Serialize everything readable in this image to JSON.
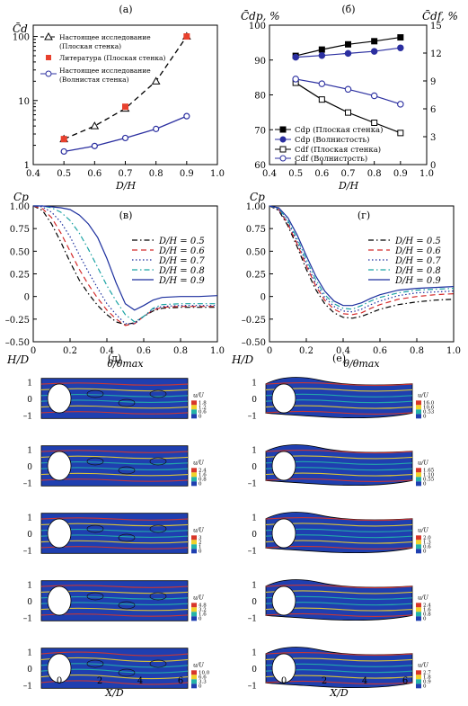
{
  "chart_data": [
    {
      "panel": "(а)",
      "type": "line",
      "ylabel": "C̄d",
      "xlabel": "D/H",
      "xlim": [
        0.4,
        1.0
      ],
      "xticks": [
        "0.4",
        "0.5",
        "0.6",
        "0.7",
        "0.8",
        "0.9",
        "1.0"
      ],
      "ylim": [
        1,
        150
      ],
      "yscale": "log",
      "yticks": [
        "1",
        "10",
        "100"
      ],
      "series": [
        {
          "name": "Настоящее исследование (Плоская стенка)",
          "x": [
            0.5,
            0.6,
            0.7,
            0.8,
            0.9
          ],
          "y": [
            2.5,
            4.0,
            7.5,
            20,
            100
          ],
          "color": "#000000",
          "marker": "triangle",
          "dash": "dashed"
        },
        {
          "name": "Литература (Плоская стенка)",
          "x": [
            0.5,
            0.7,
            0.9
          ],
          "y": [
            2.5,
            8,
            100
          ],
          "color": "#e8412e",
          "marker": "square"
        },
        {
          "name": "Настоящее исследование (Волнистая стенка)",
          "x": [
            0.5,
            0.6,
            0.7,
            0.8,
            0.9
          ],
          "y": [
            1.6,
            1.95,
            2.6,
            3.6,
            5.7
          ],
          "color": "#2b2fa0",
          "marker": "circle",
          "dash": "solid"
        }
      ],
      "legend": "top-left"
    },
    {
      "panel": "(б)",
      "type": "line",
      "ylabel_left": "C̄dp, %",
      "ylabel_right": "C̄df, %",
      "xlabel": "D/H",
      "xlim": [
        0.4,
        1.0
      ],
      "xticks": [
        "0.4",
        "0.5",
        "0.6",
        "0.7",
        "0.8",
        "0.9",
        "1.0"
      ],
      "ylim_left": [
        60,
        100
      ],
      "yticks_left": [
        "60",
        "70",
        "80",
        "90",
        "100"
      ],
      "ylim_right": [
        0,
        15
      ],
      "yticks_right": [
        "0",
        "3",
        "6",
        "9",
        "12",
        "15"
      ],
      "series": [
        {
          "name": "Cdp (Плоская стенка)",
          "axis": "left",
          "x": [
            0.5,
            0.6,
            0.7,
            0.8,
            0.9
          ],
          "y": [
            91.2,
            93.0,
            94.5,
            95.4,
            96.5
          ],
          "marker": "square-filled"
        },
        {
          "name": "Cdp (Волнистость)",
          "axis": "left",
          "x": [
            0.5,
            0.6,
            0.7,
            0.8,
            0.9
          ],
          "y": [
            90.8,
            91.3,
            91.9,
            92.5,
            93.5
          ],
          "marker": "circle-filled"
        },
        {
          "name": "Cdf (Плоская стенка)",
          "axis": "right",
          "x": [
            0.5,
            0.6,
            0.7,
            0.8,
            0.9
          ],
          "y": [
            8.8,
            7.0,
            5.6,
            4.5,
            3.4
          ],
          "marker": "square-open"
        },
        {
          "name": "Cdf (Волнистость)",
          "axis": "right",
          "x": [
            0.5,
            0.6,
            0.7,
            0.8,
            0.9
          ],
          "y": [
            9.2,
            8.7,
            8.1,
            7.4,
            6.5
          ],
          "marker": "circle-open"
        }
      ],
      "legend": "bottom-left"
    },
    {
      "panel": "(в)",
      "type": "line",
      "ylabel": "Cp",
      "xlabel": "θ/θmax",
      "xlim": [
        0,
        1
      ],
      "xticks": [
        "0",
        "0.2",
        "0.4",
        "0.6",
        "0.8",
        "1.0"
      ],
      "ylim": [
        -0.5,
        1.0
      ],
      "yticks": [
        "–0.50",
        "–0.25",
        "0",
        "0.25",
        "0.50",
        "0.75",
        "1.00"
      ],
      "series": [
        {
          "name": "D/H = 0.5",
          "color": "#000000",
          "dash": "dashdot",
          "x": [
            0,
            0.05,
            0.1,
            0.15,
            0.2,
            0.25,
            0.3,
            0.35,
            0.4,
            0.45,
            0.5,
            0.55,
            0.6,
            0.65,
            0.7,
            0.8,
            0.9,
            1.0
          ],
          "y": [
            1.0,
            0.95,
            0.8,
            0.6,
            0.38,
            0.18,
            0.03,
            -0.1,
            -0.2,
            -0.28,
            -0.31,
            -0.29,
            -0.22,
            -0.16,
            -0.13,
            -0.12,
            -0.12,
            -0.12
          ]
        },
        {
          "name": "D/H = 0.6",
          "color": "#d42a2a",
          "dash": "dashed",
          "x": [
            0,
            0.05,
            0.1,
            0.15,
            0.2,
            0.25,
            0.3,
            0.35,
            0.4,
            0.45,
            0.5,
            0.55,
            0.6,
            0.65,
            0.7,
            0.8,
            0.9,
            1.0
          ],
          "y": [
            1.0,
            0.97,
            0.87,
            0.7,
            0.5,
            0.3,
            0.13,
            -0.02,
            -0.15,
            -0.25,
            -0.32,
            -0.3,
            -0.22,
            -0.15,
            -0.12,
            -0.11,
            -0.11,
            -0.11
          ]
        },
        {
          "name": "D/H = 0.7",
          "color": "#1c2f9e",
          "dash": "dotted",
          "x": [
            0,
            0.05,
            0.1,
            0.15,
            0.2,
            0.25,
            0.3,
            0.35,
            0.4,
            0.45,
            0.5,
            0.55,
            0.6,
            0.65,
            0.7,
            0.8,
            0.9,
            1.0
          ],
          "y": [
            1.0,
            0.99,
            0.93,
            0.82,
            0.66,
            0.46,
            0.27,
            0.09,
            -0.08,
            -0.2,
            -0.3,
            -0.3,
            -0.22,
            -0.14,
            -0.11,
            -0.1,
            -0.1,
            -0.1
          ]
        },
        {
          "name": "D/H = 0.8",
          "color": "#1aa3a3",
          "dash": "dashdot",
          "x": [
            0,
            0.05,
            0.1,
            0.15,
            0.2,
            0.25,
            0.3,
            0.35,
            0.4,
            0.45,
            0.5,
            0.55,
            0.6,
            0.65,
            0.7,
            0.8,
            0.9,
            1.0
          ],
          "y": [
            1.0,
            1.0,
            0.98,
            0.93,
            0.84,
            0.7,
            0.52,
            0.32,
            0.12,
            -0.05,
            -0.2,
            -0.28,
            -0.22,
            -0.13,
            -0.09,
            -0.08,
            -0.08,
            -0.08
          ]
        },
        {
          "name": "D/H = 0.9",
          "color": "#1c2f9e",
          "dash": "solid",
          "x": [
            0,
            0.05,
            0.1,
            0.15,
            0.2,
            0.25,
            0.3,
            0.35,
            0.4,
            0.45,
            0.5,
            0.55,
            0.6,
            0.65,
            0.7,
            0.8,
            0.9,
            1.0
          ],
          "y": [
            1.0,
            1.0,
            0.99,
            0.98,
            0.96,
            0.9,
            0.8,
            0.65,
            0.42,
            0.15,
            -0.08,
            -0.15,
            -0.1,
            -0.04,
            -0.01,
            0.0,
            0.0,
            0.01
          ]
        }
      ],
      "legend": "right"
    },
    {
      "panel": "(г)",
      "type": "line",
      "ylabel": "Cp",
      "xlabel": "θ/θmax",
      "xlim": [
        0,
        1
      ],
      "xticks": [
        "0",
        "0.2",
        "0.4",
        "0.6",
        "0.8",
        "1.0"
      ],
      "ylim": [
        -0.5,
        1.0
      ],
      "yticks": [
        "–0.50",
        "–0.25",
        "0",
        "0.25",
        "0.50",
        "0.75",
        "1.00"
      ],
      "series": [
        {
          "name": "D/H = 0.5",
          "color": "#000000",
          "dash": "dashdot",
          "x": [
            0,
            0.05,
            0.1,
            0.15,
            0.2,
            0.25,
            0.3,
            0.35,
            0.4,
            0.45,
            0.5,
            0.55,
            0.6,
            0.7,
            0.8,
            0.9,
            1.0
          ],
          "y": [
            1.0,
            0.95,
            0.78,
            0.55,
            0.3,
            0.08,
            -0.08,
            -0.18,
            -0.23,
            -0.24,
            -0.22,
            -0.18,
            -0.14,
            -0.09,
            -0.06,
            -0.04,
            -0.03
          ]
        },
        {
          "name": "D/H = 0.6",
          "color": "#d42a2a",
          "dash": "dashed",
          "x": [
            0,
            0.05,
            0.1,
            0.15,
            0.2,
            0.25,
            0.3,
            0.35,
            0.4,
            0.45,
            0.5,
            0.55,
            0.6,
            0.7,
            0.8,
            0.9,
            1.0
          ],
          "y": [
            1.0,
            0.96,
            0.8,
            0.58,
            0.34,
            0.12,
            -0.04,
            -0.14,
            -0.19,
            -0.2,
            -0.18,
            -0.13,
            -0.09,
            -0.03,
            0.0,
            0.02,
            0.03
          ]
        },
        {
          "name": "D/H = 0.7",
          "color": "#1c2f9e",
          "dash": "dotted",
          "x": [
            0,
            0.05,
            0.1,
            0.15,
            0.2,
            0.25,
            0.3,
            0.35,
            0.4,
            0.45,
            0.5,
            0.55,
            0.6,
            0.7,
            0.8,
            0.9,
            1.0
          ],
          "y": [
            1.0,
            0.96,
            0.82,
            0.61,
            0.37,
            0.15,
            -0.01,
            -0.11,
            -0.16,
            -0.17,
            -0.14,
            -0.09,
            -0.05,
            0.01,
            0.04,
            0.05,
            0.06
          ]
        },
        {
          "name": "D/H = 0.8",
          "color": "#1aa3a3",
          "dash": "dashdot",
          "x": [
            0,
            0.05,
            0.1,
            0.15,
            0.2,
            0.25,
            0.3,
            0.35,
            0.4,
            0.45,
            0.5,
            0.55,
            0.6,
            0.7,
            0.8,
            0.9,
            1.0
          ],
          "y": [
            1.0,
            0.97,
            0.84,
            0.64,
            0.41,
            0.19,
            0.02,
            -0.08,
            -0.13,
            -0.14,
            -0.1,
            -0.05,
            -0.01,
            0.04,
            0.07,
            0.08,
            0.09
          ]
        },
        {
          "name": "D/H = 0.9",
          "color": "#1c2f9e",
          "dash": "solid",
          "x": [
            0,
            0.05,
            0.1,
            0.15,
            0.2,
            0.25,
            0.3,
            0.35,
            0.4,
            0.45,
            0.5,
            0.55,
            0.6,
            0.7,
            0.8,
            0.9,
            1.0
          ],
          "y": [
            1.0,
            0.98,
            0.87,
            0.68,
            0.45,
            0.23,
            0.06,
            -0.05,
            -0.1,
            -0.1,
            -0.07,
            -0.02,
            0.02,
            0.07,
            0.09,
            0.1,
            0.11
          ]
        }
      ],
      "legend": "right"
    }
  ],
  "contours": {
    "left_panel": "(д)",
    "right_panel": "(е)",
    "ylabel": "H/D",
    "xlabel": "X/D",
    "xticks": [
      "0",
      "2",
      "4",
      "6"
    ],
    "yticks": [
      "1",
      "0",
      "–1"
    ],
    "legend_title": "u/U",
    "left_legends": [
      [
        "1.8",
        "1.2",
        "0.6",
        "0"
      ],
      [
        "2.4",
        "1.6",
        "0.8",
        "0"
      ],
      [
        "3",
        "2",
        "1",
        "0"
      ],
      [
        "4.8",
        "3.2",
        "1.6",
        "0"
      ],
      [
        "10.0",
        "6.6",
        "3.3",
        "0"
      ]
    ],
    "right_legends": [
      [
        "16.0",
        "10.6",
        "0.53",
        "0"
      ],
      [
        "1.65",
        "1.10",
        "0.55",
        "0"
      ],
      [
        "2.0",
        "1.3",
        "0.6",
        "0"
      ],
      [
        "2.4",
        "1.6",
        "0.8",
        "0"
      ],
      [
        "2.7",
        "1.8",
        "0.9",
        "0"
      ]
    ],
    "colors": {
      "low": "#1f3fb0",
      "mid": "#24b3a8",
      "high": "#f0d22a",
      "peak": "#d8362a",
      "body": "#ffffff"
    }
  }
}
